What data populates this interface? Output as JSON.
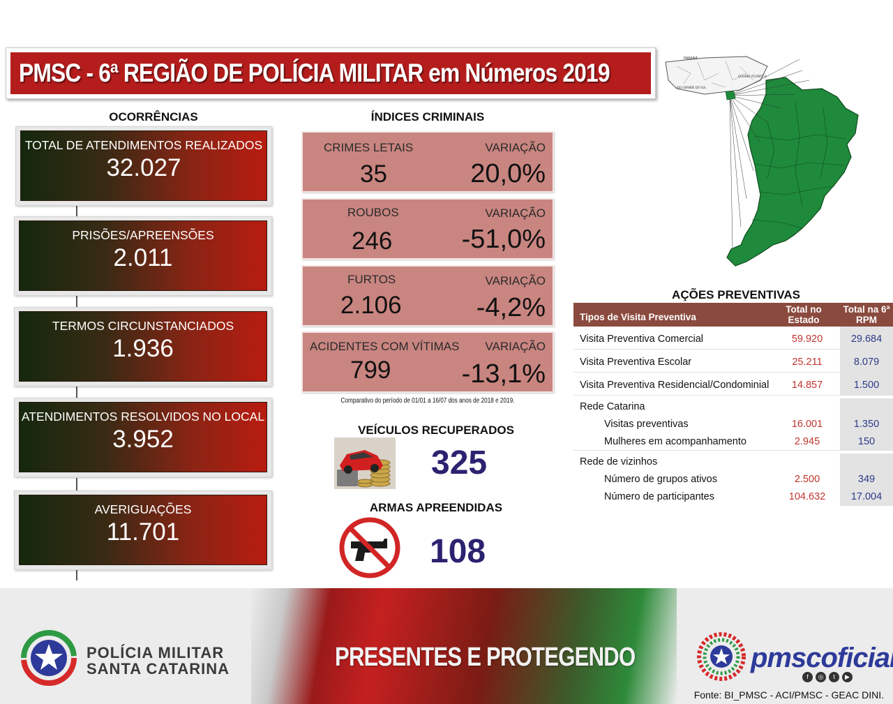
{
  "title": "PMSC - 6ª REGIÃO DE POLÍCIA MILITAR em Números 2019",
  "ocorrencias": {
    "heading": "OCORRÊNCIAS",
    "items": [
      {
        "label": "TOTAL DE ATENDIMENTOS REALIZADOS",
        "value": "32.027"
      },
      {
        "label": "PRISÕES/APREENSÕES",
        "value": "2.011"
      },
      {
        "label": "TERMOS CIRCUNSTANCIADOS",
        "value": "1.936"
      },
      {
        "label": "ATENDIMENTOS RESOLVIDOS NO LOCAL",
        "value": "3.952"
      },
      {
        "label": "AVERIGUAÇÕES",
        "value": "11.701"
      }
    ]
  },
  "indices": {
    "heading": "ÍNDICES CRIMINAIS",
    "variation_label": "VARIAÇÃO",
    "items": [
      {
        "label": "CRIMES LETAIS",
        "value": "35",
        "variation": "20,0%"
      },
      {
        "label": "ROUBOS",
        "value": "246",
        "variation": "-51,0%"
      },
      {
        "label": "FURTOS",
        "value": "2.106",
        "variation": "-4,2%"
      },
      {
        "label": "ACIDENTES COM VÍTIMAS",
        "value": "799",
        "variation": "-13,1%"
      }
    ],
    "note": "Comparativo do período de 01/01 a 16/07 dos anos de 2018 e 2019."
  },
  "veiculos": {
    "heading": "VEÍCULOS RECUPERADOS",
    "value": "325"
  },
  "armas": {
    "heading": "ARMAS APREENDIDAS",
    "value": "108"
  },
  "map": {
    "labels": [
      "PARANÁ",
      "RIO GRANDE DO SUL",
      "OCEANO ATLÂNTICO"
    ],
    "colors": {
      "region": "#1f8a3c"
    }
  },
  "acoes": {
    "heading": "AÇÕES PREVENTIVAS",
    "columns": {
      "type": "Tipos de Visita Preventiva",
      "state": "Total no Estado",
      "rpm": "Total na 6ª RPM"
    },
    "rows": [
      {
        "label": "Visita Preventiva Comercial",
        "state": "59.920",
        "rpm": "29.684"
      },
      {
        "label": "Visita Preventiva Escolar",
        "state": "25.211",
        "rpm": "8.079"
      },
      {
        "label": "Visita Preventiva Residencial/Condominial",
        "state": "14.857",
        "rpm": "1.500"
      }
    ],
    "groups": [
      {
        "title": "Rede Catarina",
        "items": [
          {
            "label": "Visitas preventivas",
            "state": "16.001",
            "rpm": "1.350"
          },
          {
            "label": "Mulheres em acompanhamento",
            "state": "2.945",
            "rpm": "150"
          }
        ]
      },
      {
        "title": "Rede de vizinhos",
        "items": [
          {
            "label": "Número de grupos ativos",
            "state": "2.500",
            "rpm": "349"
          },
          {
            "label": "Número de participantes",
            "state": "104.632",
            "rpm": "17.004"
          }
        ]
      }
    ]
  },
  "footer": {
    "org_line1": "POLÍCIA MILITAR",
    "org_line2": "SANTA CATARINA",
    "slogan": "PRESENTES E PROTEGENDO",
    "brand": "pmscoficial",
    "source": "Fonte: BI_PMSC - ACI/PMSC - GEAC DINI."
  }
}
